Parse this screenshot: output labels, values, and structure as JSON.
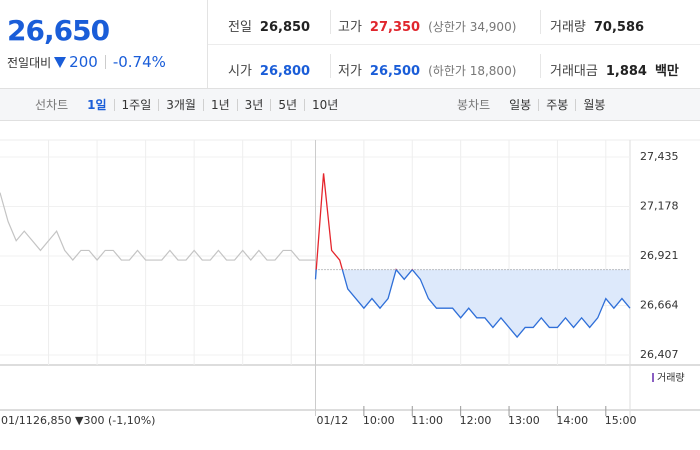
{
  "header": {
    "price": "26,650",
    "change_label": "전일대비",
    "change": "200",
    "change_pct": "-0.74%",
    "stats": [
      {
        "label": "전일",
        "value": "26,850"
      },
      {
        "label": "고가",
        "value": "27,350",
        "note": "(상한가 34,900)"
      },
      {
        "label": "거래량",
        "value": "70,586"
      },
      {
        "label": "시가",
        "value": "26,800"
      },
      {
        "label": "저가",
        "value": "26,500",
        "note": "(하한가 18,800)"
      },
      {
        "label": "거래대금",
        "value": "1,884",
        "unit": "백만"
      }
    ]
  },
  "toolbar": {
    "line_chart": {
      "label": "선차트",
      "options": [
        "1일",
        "1주일",
        "3개월",
        "1년",
        "3년",
        "5년",
        "10년"
      ],
      "selected": 0
    },
    "candle_chart": {
      "label": "봉차트",
      "options": [
        "일봉",
        "주봉",
        "월봉"
      ]
    }
  },
  "chart_data": {
    "type": "line",
    "ylim": [
      26407,
      27435
    ],
    "yticks": [
      {
        "value": 27435,
        "label": "27,435"
      },
      {
        "value": 27178,
        "label": "27,178"
      },
      {
        "value": 26921,
        "label": "26,921"
      },
      {
        "value": 26664,
        "label": "26,664"
      },
      {
        "value": 26407,
        "label": "26,407"
      }
    ],
    "xticks": [
      "10:00",
      "11:00",
      "12:00",
      "13:00",
      "14:00",
      "15:00"
    ],
    "days": [
      {
        "label": "01/11",
        "note": "26,850 ▼300 (-1,10%)"
      },
      {
        "label": "01/12"
      }
    ],
    "reference_line": 26850,
    "up_color": "#e5252c",
    "down_color": "#2f6fd8",
    "fill_color": "#dde9fb",
    "volume_label": "거래량",
    "series": [
      {
        "color": "#c4c4c4",
        "values": [
          27250,
          27100,
          27000,
          27050,
          27000,
          26950,
          27000,
          27050,
          26950,
          26900,
          26950,
          26950,
          26900,
          26950,
          26950,
          26900,
          26900,
          26950,
          26900,
          26900,
          26900,
          26950,
          26900,
          26900,
          26950,
          26900,
          26900,
          26950,
          26900,
          26900,
          26950,
          26900,
          26950,
          26900,
          26900,
          26950,
          26950,
          26900,
          26900,
          26900
        ]
      },
      {
        "x": [
          "09:00",
          "09:10",
          "09:20",
          "09:30",
          "09:40",
          "09:50",
          "10:00",
          "10:10",
          "10:20",
          "10:30",
          "10:40",
          "10:50",
          "11:00",
          "11:10",
          "11:20",
          "11:30",
          "11:40",
          "11:50",
          "12:00",
          "12:10",
          "12:20",
          "12:30",
          "12:40",
          "12:50",
          "13:00",
          "13:10",
          "13:20",
          "13:30",
          "13:40",
          "13:50",
          "14:00",
          "14:10",
          "14:20",
          "14:30",
          "14:40",
          "14:50",
          "15:00",
          "15:10",
          "15:20",
          "15:30"
        ],
        "values": [
          26800,
          27350,
          26950,
          26900,
          26750,
          26700,
          26650,
          26700,
          26650,
          26700,
          26850,
          26800,
          26850,
          26800,
          26700,
          26650,
          26650,
          26650,
          26600,
          26650,
          26600,
          26600,
          26550,
          26600,
          26550,
          26500,
          26550,
          26550,
          26600,
          26550,
          26550,
          26600,
          26550,
          26600,
          26550,
          26600,
          26700,
          26650,
          26700,
          26650
        ]
      }
    ]
  }
}
